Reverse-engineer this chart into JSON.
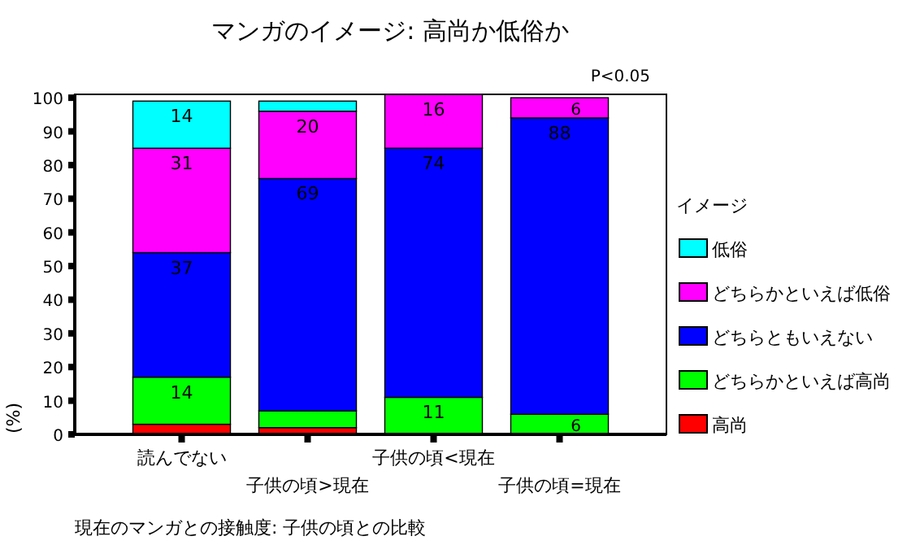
{
  "chart_data": {
    "type": "bar",
    "stacked": true,
    "title": "マンガのイメージ: 高尚か低俗か",
    "xlabel": "現在のマンガとの接触度: 子供の頃との比較",
    "ylabel": "(%)",
    "legend_title": "イメージ",
    "legend": "right",
    "annotations": [
      "P<0.05"
    ],
    "categories": [
      "読んでない",
      "子供の頃>現在",
      "子供の頃<現在",
      "子供の頃=現在"
    ],
    "ylim": [
      0,
      101
    ],
    "yticks": [
      0,
      10,
      20,
      30,
      40,
      50,
      60,
      70,
      80,
      90,
      100
    ],
    "series": [
      {
        "name": "高尚",
        "color": "#ff0000",
        "values": [
          3,
          2,
          null,
          null
        ],
        "value_labels": [
          null,
          null,
          null,
          null
        ]
      },
      {
        "name": "どちらかといえば高尚",
        "color": "#00ff00",
        "values": [
          14,
          5,
          11,
          6
        ],
        "value_labels": [
          "14",
          null,
          "11",
          "6"
        ]
      },
      {
        "name": "どちらともいえない",
        "color": "#0000ff",
        "values": [
          37,
          69,
          74,
          88
        ],
        "value_labels": [
          "37",
          "69",
          "74",
          "88"
        ]
      },
      {
        "name": "どちらかといえば低俗",
        "color": "#ff00ff",
        "values": [
          31,
          20,
          16,
          6
        ],
        "value_labels": [
          "31",
          "20",
          "16",
          "6"
        ]
      },
      {
        "name": "低俗",
        "color": "#00ffff",
        "values": [
          14,
          3,
          null,
          null
        ],
        "value_labels": [
          "14",
          null,
          null,
          null
        ]
      }
    ]
  }
}
